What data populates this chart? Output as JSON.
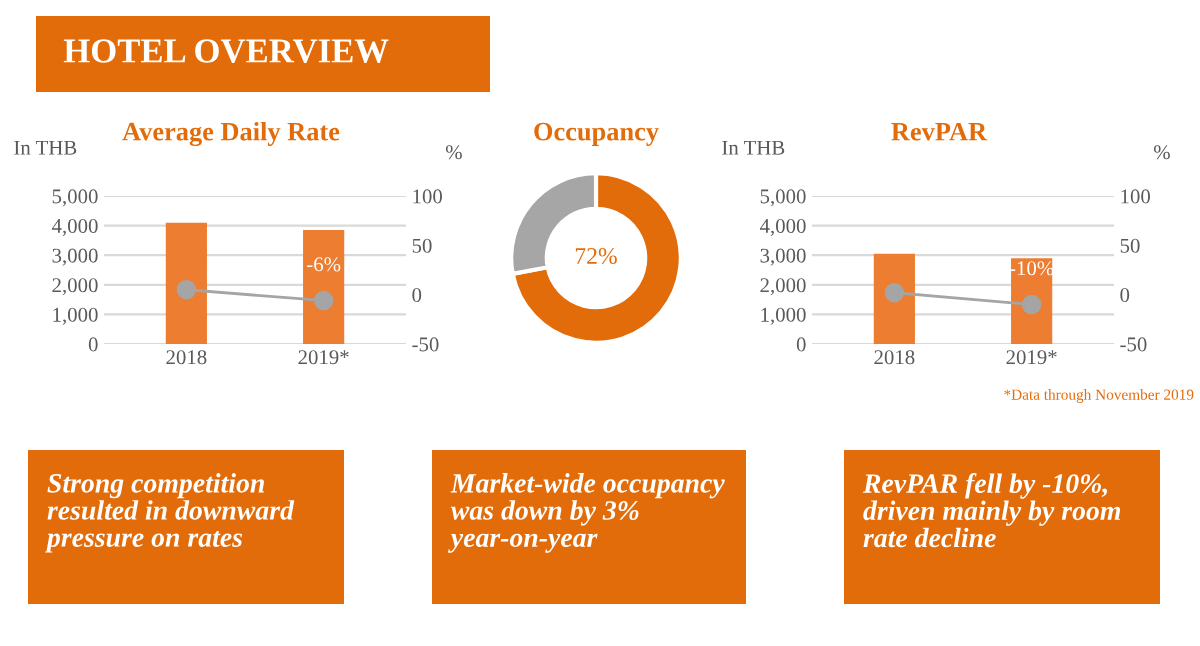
{
  "chart_data": [
    {
      "type": "other",
      "title": "HOTEL OVERVIEW"
    },
    {
      "type": "bar",
      "title": "Average Daily Rate",
      "categories": [
        "2018",
        "2019*"
      ],
      "ylabel": "In THB",
      "y2label": "%",
      "series": [
        {
          "type": "bar",
          "color": "#ed7d31",
          "values": [
            4100,
            3850
          ]
        },
        {
          "type": "line",
          "axis": "y2",
          "color": "#a5a5a5",
          "marker": "circle",
          "values": [
            5,
            -6
          ],
          "value_labels": [
            null,
            "-6%"
          ]
        }
      ],
      "ylim": [
        0,
        5000
      ],
      "yticks": [
        0,
        {
          "value": 1000,
          "label": "1,000"
        },
        {
          "value": 2000,
          "label": "2,000"
        },
        {
          "value": 3000,
          "label": "3,000"
        },
        {
          "value": 4000,
          "label": "4,000"
        },
        {
          "value": 5000,
          "label": "5,000"
        }
      ],
      "y2lim": [
        -50,
        100
      ],
      "y2ticks": [
        -50,
        0,
        50,
        100
      ],
      "grid": "y",
      "annotations": [
        "Strong competition resulted in downward pressure on rates"
      ]
    },
    {
      "type": "donut",
      "title": "Occupancy",
      "categories": [
        null,
        null
      ],
      "values": [
        72,
        28
      ],
      "colors": [
        "#e36c0a",
        "#a6a6a6"
      ],
      "value_labels": [
        "72%",
        null
      ],
      "annotations": [
        "Market-wide occupancy was down by 3% year-on-year"
      ]
    },
    {
      "type": "bar",
      "title": "RevPAR",
      "categories": [
        "2018",
        "2019*"
      ],
      "ylabel": "In THB",
      "y2label": "%",
      "series": [
        {
          "type": "bar",
          "color": "#ed7d31",
          "values": [
            3050,
            2900
          ]
        },
        {
          "type": "line",
          "axis": "y2",
          "color": "#a5a5a5",
          "marker": "circle",
          "values": [
            2,
            -10
          ],
          "value_labels": [
            null,
            "-10%"
          ]
        }
      ],
      "ylim": [
        0,
        5000
      ],
      "yticks": [
        0,
        {
          "value": 1000,
          "label": "1,000"
        },
        {
          "value": 2000,
          "label": "2,000"
        },
        {
          "value": 3000,
          "label": "3,000"
        },
        {
          "value": 4000,
          "label": "4,000"
        },
        {
          "value": 5000,
          "label": "5,000"
        }
      ],
      "y2lim": [
        -50,
        100
      ],
      "y2ticks": [
        -50,
        0,
        50,
        100
      ],
      "grid": "y",
      "annotations": [
        "*Data through November 2019",
        "RevPAR fell by -10%, driven mainly by room rate decline"
      ]
    }
  ]
}
